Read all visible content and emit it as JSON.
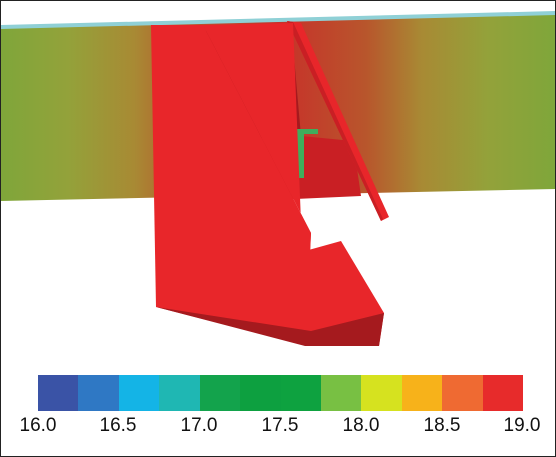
{
  "colorbar": {
    "colors": [
      "#3a53a6",
      "#2f78c4",
      "#14b4e6",
      "#1fb7b3",
      "#13a34c",
      "#0da040",
      "#0ea240",
      "#78c043",
      "#d6e21f",
      "#f7b21a",
      "#ef6a32",
      "#e72b2b"
    ],
    "ticks": [
      "16.0",
      "16.5",
      "17.0",
      "17.5",
      "18.0",
      "18.5",
      "19.0"
    ],
    "range": [
      16.0,
      19.0
    ]
  },
  "field": {
    "outer_colors": [
      "#7fa63a",
      "#93a23a",
      "#a88a34",
      "#b8562c",
      "#c8302a"
    ],
    "inner_color": "#d2262a",
    "edge_highlight": "#8fd0d6"
  },
  "structure": {
    "face_color": "#e8262a",
    "shadow_color": "#c91f24",
    "dark_color": "#a51a1e",
    "probe_color": "#3fae5c"
  }
}
